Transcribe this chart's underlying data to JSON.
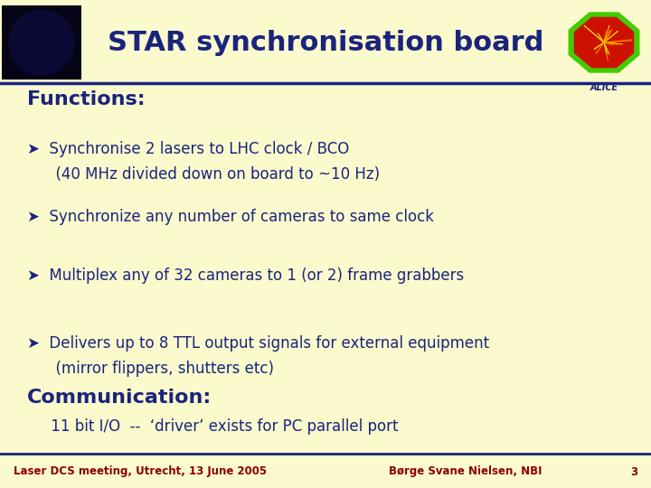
{
  "bg_color": "#FAFACD",
  "title": "STAR synchronisation board",
  "title_color": "#1a237e",
  "title_fontsize": 22,
  "header_line_color": "#1a237e",
  "section1_header": "Functions:",
  "section1_color": "#1a237e",
  "section1_fontsize": 16,
  "bullets": [
    {
      "line1": "➤  Synchronise 2 lasers to LHC clock / BCO",
      "line2": "      (40 MHz divided down on board to ~10 Hz)"
    },
    {
      "line1": "➤  Synchronize any number of cameras to same clock",
      "line2": ""
    },
    {
      "line1": "➤  Multiplex any of 32 cameras to 1 (or 2) frame grabbers",
      "line2": ""
    },
    {
      "line1": "➤  Delivers up to 8 TTL output signals for external equipment",
      "line2": "      (mirror flippers, shutters etc)"
    }
  ],
  "bullet_color": "#1a237e",
  "bullet_fontsize": 12,
  "section2_header": "Communication:",
  "section2_color": "#1a237e",
  "section2_fontsize": 16,
  "comm_text": "     11 bit I/O  --  ‘driver’ exists for PC parallel port",
  "comm_color": "#1a237e",
  "comm_fontsize": 12,
  "footer_line_color": "#1a237e",
  "footer_left": "Laser DCS meeting, Utrecht, 13 June 2005",
  "footer_right": "Børge Svane Nielsen, NBI",
  "footer_page": "3",
  "footer_color": "#8B0000",
  "footer_fontsize": 8.5
}
